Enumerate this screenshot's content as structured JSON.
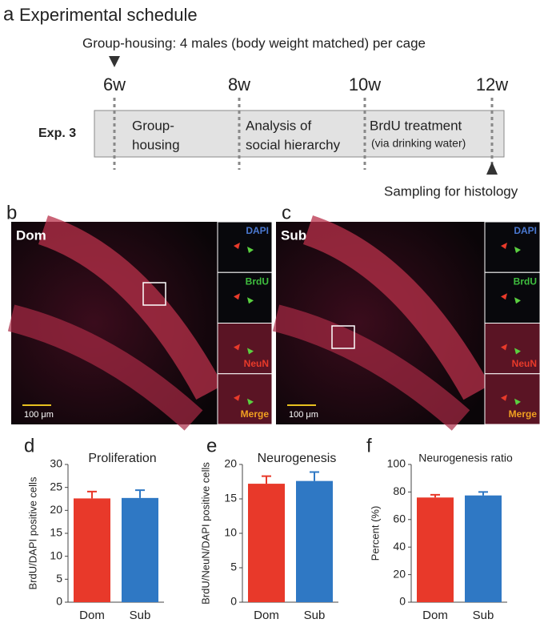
{
  "panel_a": {
    "label": "a",
    "title": "Experimental schedule",
    "note": "Group-housing: 4 males (body weight matched) per cage",
    "weeks": [
      "6w",
      "8w",
      "10w",
      "12w"
    ],
    "exp": "Exp. 3",
    "phases": [
      {
        "lines": [
          "Group-",
          "housing"
        ]
      },
      {
        "lines": [
          "Analysis of",
          "social hierarchy"
        ]
      },
      {
        "lines": [
          "BrdU treatment",
          "(via drinking water)"
        ]
      }
    ],
    "sampling": "Sampling for histology"
  },
  "panel_b": {
    "label": "b",
    "group": "Dom",
    "channels": [
      "DAPI",
      "BrdU",
      "NeuN",
      "Merge"
    ],
    "scale": "100 μm"
  },
  "panel_c": {
    "label": "c",
    "group": "Sub",
    "channels": [
      "DAPI",
      "BrdU",
      "NeuN",
      "Merge"
    ],
    "scale": "100 μm"
  },
  "chart_data": [
    {
      "type": "bar",
      "panel_label": "d",
      "title": "Proliferation",
      "y_label": "BrdU/DAPI positive cells",
      "categories": [
        "Dom",
        "Sub"
      ],
      "values": [
        22.6,
        22.7
      ],
      "errors": [
        1.5,
        1.7
      ],
      "colors": [
        "#e8392a",
        "#2f78c4"
      ],
      "ylim": [
        0,
        30
      ],
      "yticks": [
        0,
        5,
        10,
        15,
        20,
        25,
        30
      ]
    },
    {
      "type": "bar",
      "panel_label": "e",
      "title": "Neurogenesis",
      "y_label": "BrdU/NeuN/DAPI positive cells",
      "categories": [
        "Dom",
        "Sub"
      ],
      "values": [
        17.2,
        17.6
      ],
      "errors": [
        1.1,
        1.3
      ],
      "colors": [
        "#e8392a",
        "#2f78c4"
      ],
      "ylim": [
        0,
        20
      ],
      "yticks": [
        0,
        5,
        10,
        15,
        20
      ]
    },
    {
      "type": "bar",
      "panel_label": "f",
      "title": "Neurogenesis ratio",
      "y_label": "Percent (%)",
      "categories": [
        "Dom",
        "Sub"
      ],
      "values": [
        76,
        77.5
      ],
      "errors": [
        2,
        2.5
      ],
      "colors": [
        "#e8392a",
        "#2f78c4"
      ],
      "ylim": [
        0,
        100
      ],
      "yticks": [
        0,
        20,
        40,
        60,
        80,
        100
      ]
    }
  ]
}
